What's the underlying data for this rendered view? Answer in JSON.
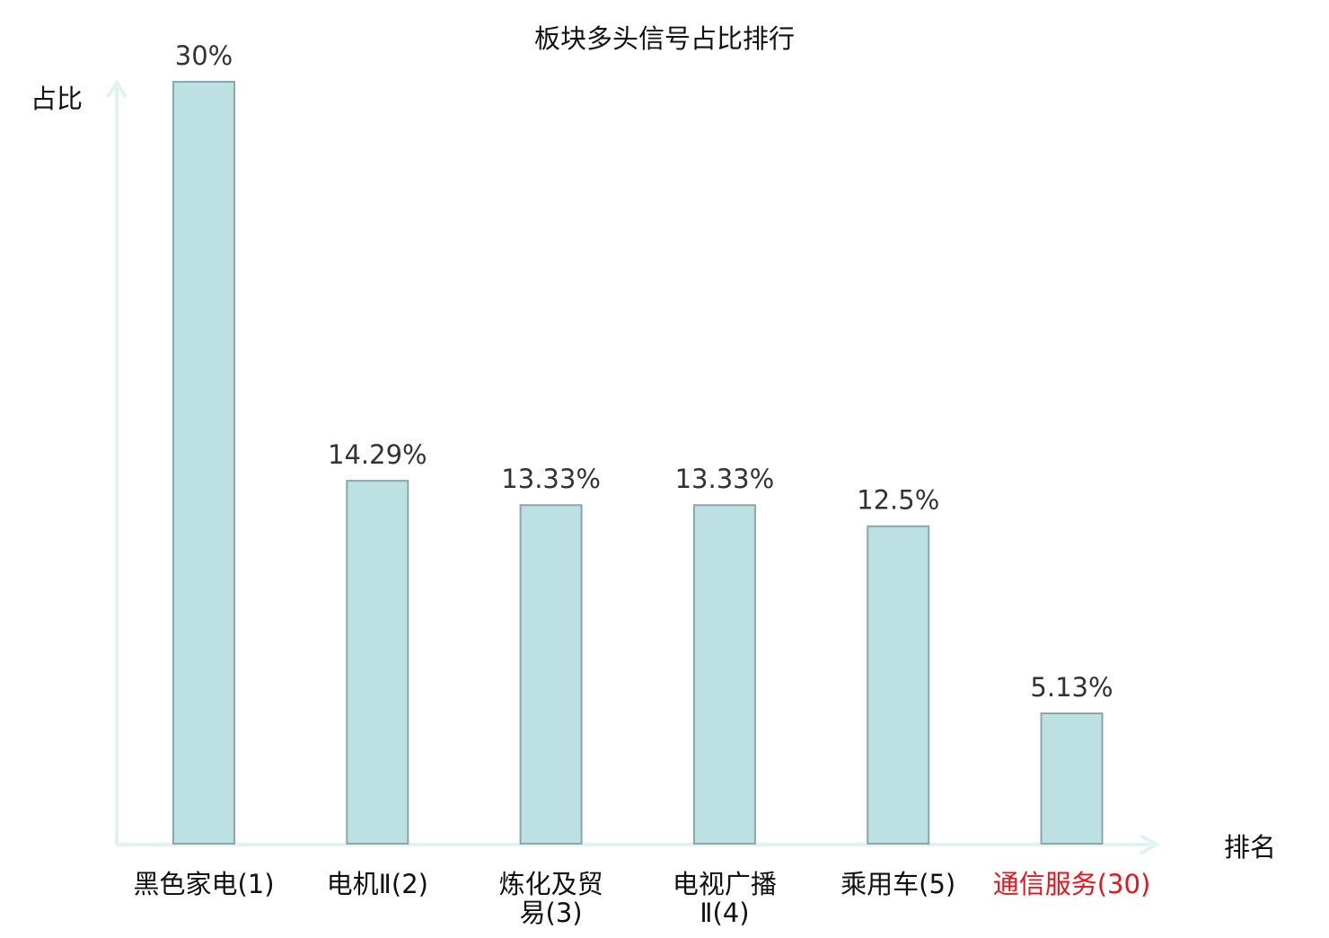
{
  "chart_data": {
    "type": "bar",
    "title": "板块多头信号占比排行",
    "ylabel": "占比",
    "xlabel": "排名",
    "ylim": [
      0,
      30
    ],
    "grid": false,
    "categories": [
      [
        "黑色家电(1)"
      ],
      [
        "电机Ⅱ(2)"
      ],
      [
        "炼化及贸",
        "易(3)"
      ],
      [
        "电视广播",
        "Ⅱ(4)"
      ],
      [
        "乘用车(5)"
      ],
      [
        "通信服务(30)"
      ]
    ],
    "values": [
      30,
      14.29,
      13.33,
      13.33,
      12.5,
      5.13
    ],
    "value_labels": [
      "30%",
      "14.29%",
      "13.33%",
      "13.33%",
      "12.5%",
      "5.13%"
    ],
    "highlight_index": 5
  },
  "colors": {
    "bar_fill": "#bde0e3",
    "bar_stroke": "#8aa8ab",
    "axis": "#e0f3f1",
    "text": "#111111",
    "value_text": "#333333",
    "highlight_text": "#e8141b"
  }
}
